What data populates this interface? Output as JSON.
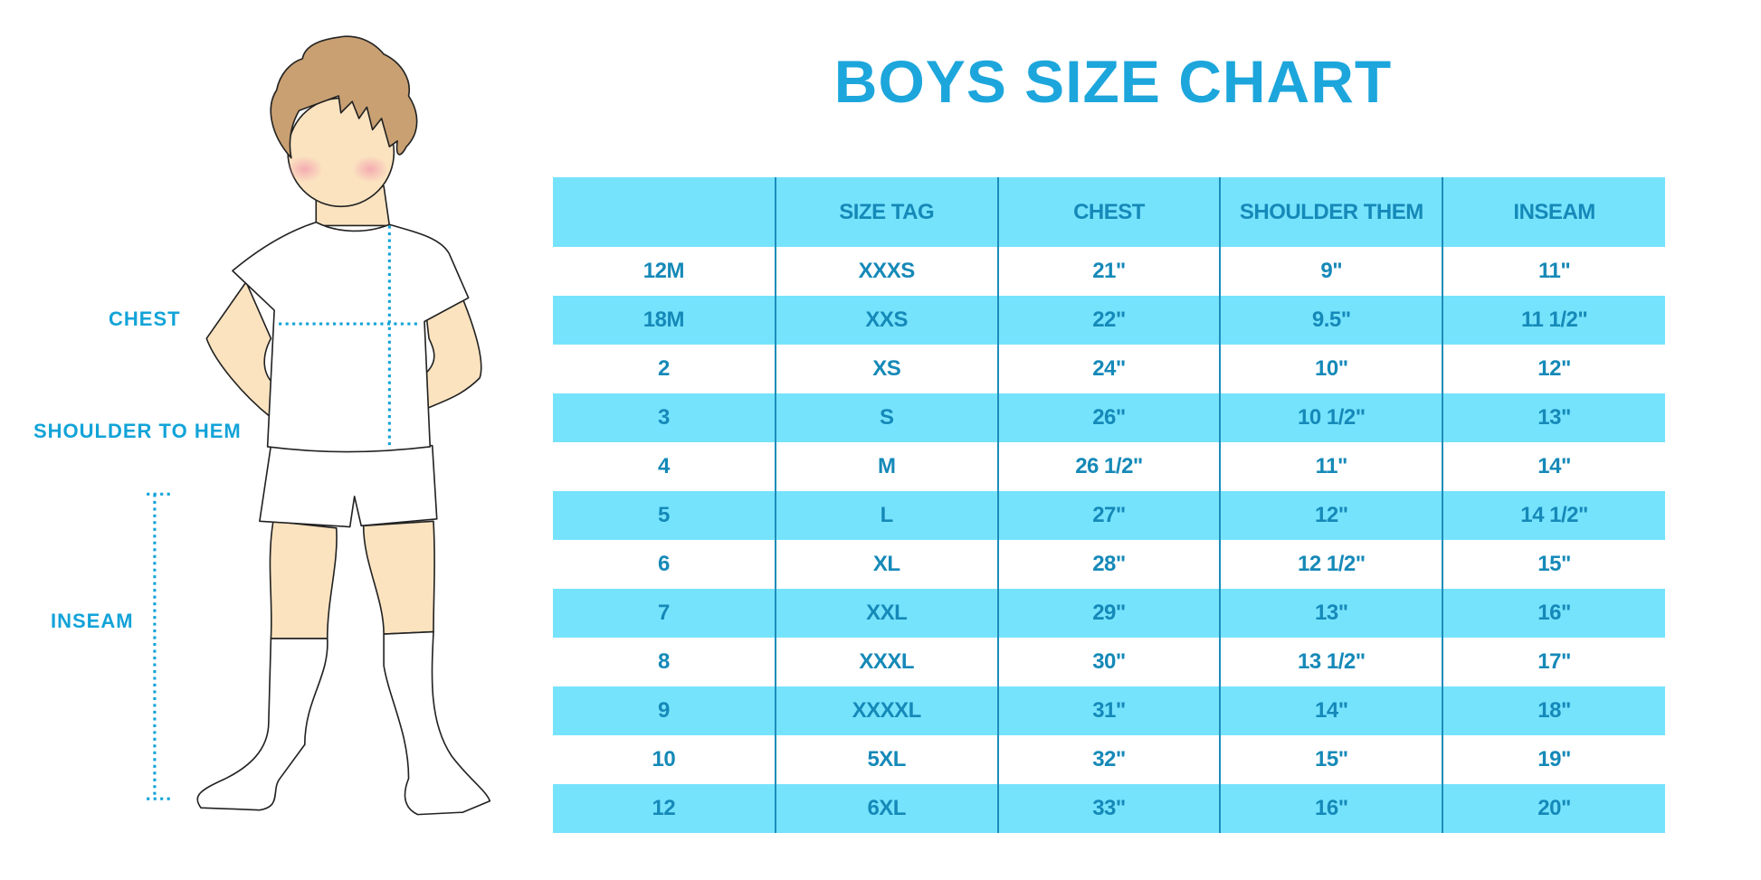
{
  "title": "BOYS SIZE CHART",
  "figure_labels": {
    "chest": "CHEST",
    "shoulder_to_hem": "SHOULDER TO HEM",
    "inseam": "INSEAM"
  },
  "colors": {
    "accent": "#1ca6dc",
    "table_band": "#76e3fd",
    "table_text": "#1589b8",
    "hair": "#c9a072",
    "skin": "#fbe3c0"
  },
  "table": {
    "headers": [
      "",
      "SIZE TAG",
      "CHEST",
      "SHOULDER THEM",
      "INSEAM"
    ],
    "rows": [
      [
        "12M",
        "XXXS",
        "21\"",
        "9\"",
        "11\""
      ],
      [
        "18M",
        "XXS",
        "22\"",
        "9.5\"",
        "11 1/2\""
      ],
      [
        "2",
        "XS",
        "24\"",
        "10\"",
        "12\""
      ],
      [
        "3",
        "S",
        "26\"",
        "10 1/2\"",
        "13\""
      ],
      [
        "4",
        "M",
        "26 1/2\"",
        "11\"",
        "14\""
      ],
      [
        "5",
        "L",
        "27\"",
        "12\"",
        "14 1/2\""
      ],
      [
        "6",
        "XL",
        "28\"",
        "12 1/2\"",
        "15\""
      ],
      [
        "7",
        "XXL",
        "29\"",
        "13\"",
        "16\""
      ],
      [
        "8",
        "XXXL",
        "30\"",
        "13 1/2\"",
        "17\""
      ],
      [
        "9",
        "XXXXL",
        "31\"",
        "14\"",
        "18\""
      ],
      [
        "10",
        "5XL",
        "32\"",
        "15\"",
        "19\""
      ],
      [
        "12",
        "6XL",
        "33\"",
        "16\"",
        "20\""
      ]
    ]
  }
}
